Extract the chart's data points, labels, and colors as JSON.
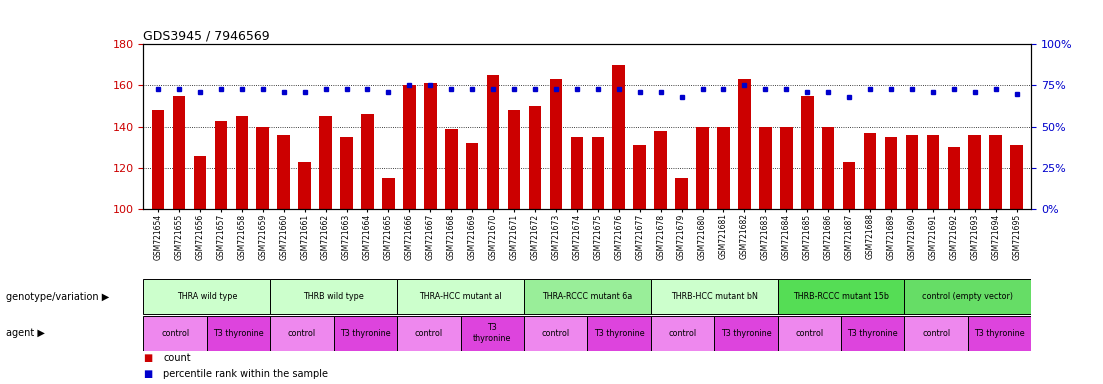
{
  "title": "GDS3945 / 7946569",
  "samples": [
    "GSM721654",
    "GSM721655",
    "GSM721656",
    "GSM721657",
    "GSM721658",
    "GSM721659",
    "GSM721660",
    "GSM721661",
    "GSM721662",
    "GSM721663",
    "GSM721664",
    "GSM721665",
    "GSM721666",
    "GSM721667",
    "GSM721668",
    "GSM721669",
    "GSM721670",
    "GSM721671",
    "GSM721672",
    "GSM721673",
    "GSM721674",
    "GSM721675",
    "GSM721676",
    "GSM721677",
    "GSM721678",
    "GSM721679",
    "GSM721680",
    "GSM721681",
    "GSM721682",
    "GSM721683",
    "GSM721684",
    "GSM721685",
    "GSM721686",
    "GSM721687",
    "GSM721688",
    "GSM721689",
    "GSM721690",
    "GSM721691",
    "GSM721692",
    "GSM721693",
    "GSM721694",
    "GSM721695"
  ],
  "counts": [
    148,
    155,
    126,
    143,
    145,
    140,
    136,
    123,
    145,
    135,
    146,
    115,
    160,
    161,
    139,
    132,
    165,
    148,
    150,
    163,
    135,
    135,
    170,
    131,
    138,
    115,
    140,
    140,
    163,
    140,
    140,
    155,
    140,
    123,
    137,
    135,
    136,
    136,
    130,
    136,
    136,
    131
  ],
  "percentiles": [
    73,
    73,
    71,
    73,
    73,
    73,
    71,
    71,
    73,
    73,
    73,
    71,
    75,
    75,
    73,
    73,
    73,
    73,
    73,
    73,
    73,
    73,
    73,
    71,
    71,
    68,
    73,
    73,
    75,
    73,
    73,
    71,
    71,
    68,
    73,
    73,
    73,
    71,
    73,
    71,
    73,
    70
  ],
  "ylim_left": [
    100,
    180
  ],
  "ylim_right": [
    0,
    100
  ],
  "yticks_left": [
    100,
    120,
    140,
    160,
    180
  ],
  "yticks_right": [
    0,
    25,
    50,
    75,
    100
  ],
  "bar_color": "#CC0000",
  "marker_color": "#0000CC",
  "genotype_groups": [
    {
      "label": "THRA wild type",
      "start": 0,
      "end": 5,
      "color": "#CCFFCC"
    },
    {
      "label": "THRB wild type",
      "start": 6,
      "end": 11,
      "color": "#CCFFCC"
    },
    {
      "label": "THRA-HCC mutant al",
      "start": 12,
      "end": 17,
      "color": "#CCFFCC"
    },
    {
      "label": "THRA-RCCC mutant 6a",
      "start": 18,
      "end": 23,
      "color": "#99EE99"
    },
    {
      "label": "THRB-HCC mutant bN",
      "start": 24,
      "end": 29,
      "color": "#CCFFCC"
    },
    {
      "label": "THRB-RCCC mutant 15b",
      "start": 30,
      "end": 35,
      "color": "#55DD55"
    },
    {
      "label": "control (empty vector)",
      "start": 36,
      "end": 41,
      "color": "#66DD66"
    }
  ],
  "agent_groups": [
    {
      "label": "control",
      "start": 0,
      "end": 2,
      "color": "#EE88EE"
    },
    {
      "label": "T3 thyronine",
      "start": 3,
      "end": 5,
      "color": "#DD44DD"
    },
    {
      "label": "control",
      "start": 6,
      "end": 8,
      "color": "#EE88EE"
    },
    {
      "label": "T3 thyronine",
      "start": 9,
      "end": 11,
      "color": "#DD44DD"
    },
    {
      "label": "control",
      "start": 12,
      "end": 14,
      "color": "#EE88EE"
    },
    {
      "label": "T3\nthyronine",
      "start": 15,
      "end": 17,
      "color": "#DD44DD"
    },
    {
      "label": "control",
      "start": 18,
      "end": 20,
      "color": "#EE88EE"
    },
    {
      "label": "T3 thyronine",
      "start": 21,
      "end": 23,
      "color": "#DD44DD"
    },
    {
      "label": "control",
      "start": 24,
      "end": 26,
      "color": "#EE88EE"
    },
    {
      "label": "T3 thyronine",
      "start": 27,
      "end": 29,
      "color": "#DD44DD"
    },
    {
      "label": "control",
      "start": 30,
      "end": 32,
      "color": "#EE88EE"
    },
    {
      "label": "T3 thyronine",
      "start": 33,
      "end": 35,
      "color": "#DD44DD"
    },
    {
      "label": "control",
      "start": 36,
      "end": 38,
      "color": "#EE88EE"
    },
    {
      "label": "T3 thyronine",
      "start": 39,
      "end": 41,
      "color": "#DD44DD"
    }
  ],
  "legend_count_color": "#CC0000",
  "legend_marker_color": "#0000CC",
  "bg_color": "#FFFFFF",
  "tick_label_color_left": "#CC0000",
  "tick_label_color_right": "#0000CC",
  "genotype_label": "genotype/variation ▶",
  "agent_label": "agent ▶"
}
